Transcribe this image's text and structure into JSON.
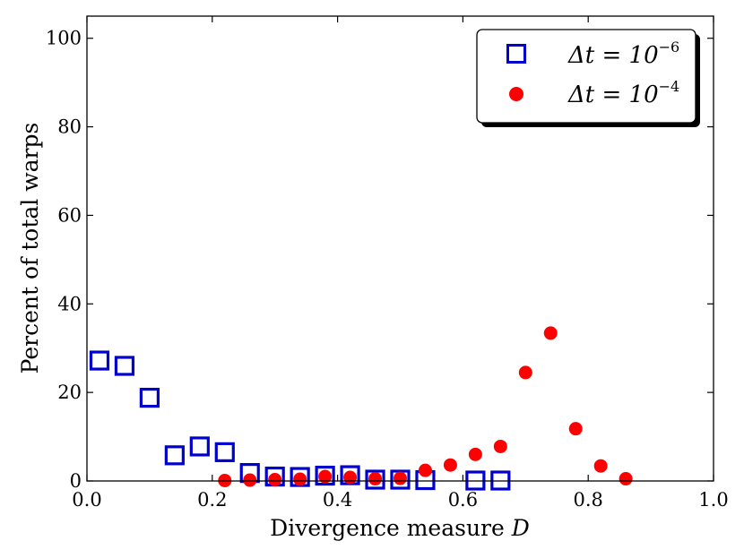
{
  "chart_data": {
    "type": "scatter",
    "title": "",
    "xlabel": "Divergence measure D",
    "ylabel": "Percent of total warps",
    "xlim": [
      0.0,
      1.0
    ],
    "ylim": [
      0,
      105
    ],
    "xticks": [
      0.0,
      0.2,
      0.4,
      0.6,
      0.8,
      1.0
    ],
    "xtick_labels": [
      "0.0",
      "0.2",
      "0.4",
      "0.6",
      "0.8",
      "1.0"
    ],
    "yticks": [
      0,
      20,
      40,
      60,
      80,
      100
    ],
    "ytick_labels": [
      "0",
      "20",
      "40",
      "60",
      "80",
      "100"
    ],
    "grid": false,
    "legend_position": "top-right",
    "series": [
      {
        "name": "Δt = 10^-6",
        "legend_main": "Δt = 10",
        "legend_exp": "−6",
        "marker": "open-square",
        "color": "#0000cc",
        "x": [
          0.02,
          0.06,
          0.1,
          0.14,
          0.18,
          0.22,
          0.26,
          0.3,
          0.34,
          0.38,
          0.42,
          0.46,
          0.5,
          0.54,
          0.62,
          0.66
        ],
        "y": [
          27.2,
          26.0,
          18.8,
          5.8,
          7.8,
          6.5,
          1.8,
          1.0,
          0.9,
          1.2,
          1.3,
          0.3,
          0.3,
          0.2,
          0.1,
          0.1
        ]
      },
      {
        "name": "Δt = 10^-4",
        "legend_main": "Δt = 10",
        "legend_exp": "−4",
        "marker": "filled-circle",
        "color": "#ff0000",
        "x": [
          0.22,
          0.26,
          0.3,
          0.34,
          0.38,
          0.42,
          0.46,
          0.5,
          0.54,
          0.58,
          0.62,
          0.66,
          0.7,
          0.74,
          0.78,
          0.82,
          0.86
        ],
        "y": [
          0.1,
          0.2,
          0.3,
          0.4,
          1.0,
          0.8,
          0.5,
          0.6,
          2.4,
          3.6,
          6.0,
          7.8,
          24.5,
          33.4,
          11.8,
          3.4,
          0.5
        ]
      }
    ]
  }
}
